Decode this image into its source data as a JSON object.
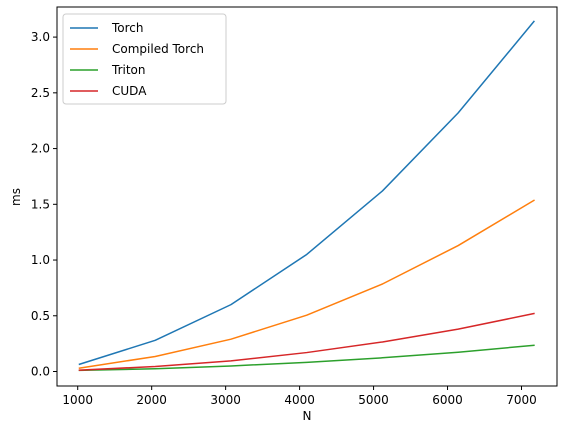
{
  "chart_data": {
    "type": "line",
    "title": "",
    "xlabel": "N",
    "ylabel": "ms",
    "xlim": [
      720,
      7480
    ],
    "ylim": [
      -0.13,
      3.27
    ],
    "xticks": [
      1000,
      2000,
      3000,
      4000,
      5000,
      6000,
      7000
    ],
    "yticks": [
      0.0,
      0.5,
      1.0,
      1.5,
      2.0,
      2.5,
      3.0
    ],
    "xtick_labels": [
      "1000",
      "2000",
      "3000",
      "4000",
      "5000",
      "6000",
      "7000"
    ],
    "ytick_labels": [
      "0.0",
      "0.5",
      "1.0",
      "1.5",
      "2.0",
      "2.5",
      "3.0"
    ],
    "grid": false,
    "legend_position": "top-left",
    "x": [
      1024,
      2048,
      3072,
      4096,
      5120,
      6144,
      7168
    ],
    "series": [
      {
        "name": "Torch",
        "color": "#1f77b4",
        "values": [
          0.065,
          0.28,
          0.6,
          1.05,
          1.62,
          2.32,
          3.14
        ]
      },
      {
        "name": "Compiled Torch",
        "color": "#ff7f0e",
        "values": [
          0.03,
          0.135,
          0.29,
          0.505,
          0.785,
          1.13,
          1.535
        ]
      },
      {
        "name": "Triton",
        "color": "#2ca02c",
        "values": [
          0.01,
          0.025,
          0.05,
          0.082,
          0.123,
          0.173,
          0.235
        ]
      },
      {
        "name": "CUDA",
        "color": "#d62728",
        "values": [
          0.012,
          0.045,
          0.095,
          0.17,
          0.265,
          0.38,
          0.52
        ]
      }
    ]
  }
}
